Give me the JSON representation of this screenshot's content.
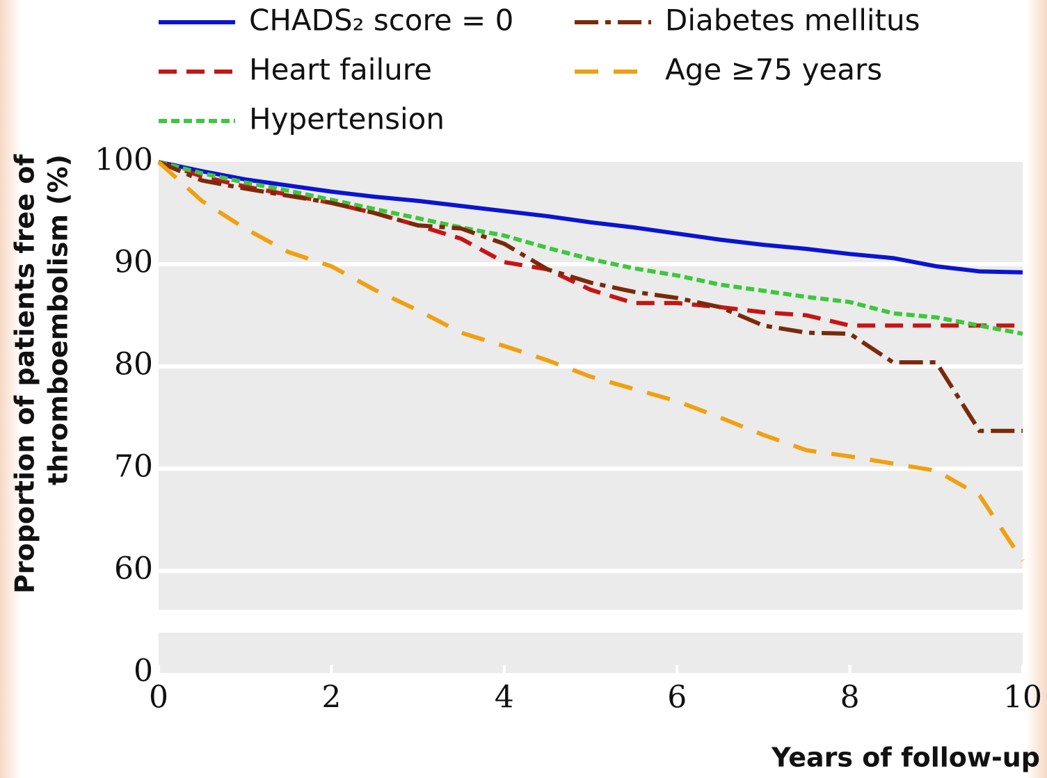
{
  "chart_data": {
    "type": "line",
    "xlabel": "Years of follow-up",
    "ylabel": [
      "Proportion of patients free of",
      "thromboembolism (%)"
    ],
    "x": [
      0,
      0.5,
      1,
      1.5,
      2,
      2.5,
      3,
      3.5,
      4,
      4.5,
      5,
      5.5,
      6,
      6.5,
      7,
      7.5,
      8,
      8.5,
      9,
      9.5,
      10
    ],
    "series": [
      {
        "name": "CHADS₂ score = 0",
        "color": "#0a14d2",
        "style": "solid",
        "values": [
          100,
          99.1,
          98.3,
          97.7,
          97.1,
          96.6,
          96.2,
          95.7,
          95.2,
          94.7,
          94.1,
          93.6,
          93.0,
          92.4,
          91.9,
          91.5,
          91.0,
          90.6,
          89.8,
          89.3,
          89.2
        ]
      },
      {
        "name": "Heart failure",
        "color": "#c81414",
        "style": "dashed",
        "values": [
          100,
          98.6,
          97.6,
          96.8,
          96.0,
          95.0,
          93.8,
          92.5,
          90.2,
          89.5,
          87.5,
          86.2,
          86.2,
          85.8,
          85.3,
          85.0,
          84.0,
          84.0,
          84.0,
          84.0,
          84.0
        ]
      },
      {
        "name": "Hypertension",
        "color": "#3cc83c",
        "style": "dotted",
        "values": [
          100,
          98.9,
          98.0,
          97.2,
          96.3,
          95.4,
          94.5,
          93.6,
          92.8,
          91.6,
          90.5,
          89.6,
          88.9,
          88.0,
          87.4,
          86.8,
          86.3,
          85.2,
          84.8,
          84.0,
          83.2
        ]
      },
      {
        "name": "Diabetes mellitus",
        "color": "#7a2a0a",
        "style": "dashdot",
        "values": [
          100,
          98.2,
          97.4,
          96.7,
          96.0,
          95.0,
          93.8,
          93.5,
          92.0,
          89.5,
          88.2,
          87.3,
          86.7,
          85.8,
          84.0,
          83.3,
          83.2,
          80.4,
          80.4,
          73.7,
          73.7
        ]
      },
      {
        "name": "Age ≥75 years",
        "color": "#f0a010",
        "style": "longdash",
        "values": [
          100,
          96.2,
          93.5,
          91.2,
          89.8,
          87.5,
          85.5,
          83.3,
          82.0,
          80.6,
          79.0,
          77.8,
          76.6,
          75.0,
          73.3,
          71.8,
          71.2,
          70.5,
          69.8,
          67.4,
          61.0
        ]
      }
    ],
    "xlim": [
      0,
      10
    ],
    "xticks": [
      0,
      2,
      4,
      6,
      8,
      10
    ],
    "ylim": [
      0,
      100
    ],
    "ybreak": [
      4,
      56.2
    ],
    "yticks": [
      0,
      60,
      70,
      80,
      90,
      100
    ],
    "grid": true
  }
}
